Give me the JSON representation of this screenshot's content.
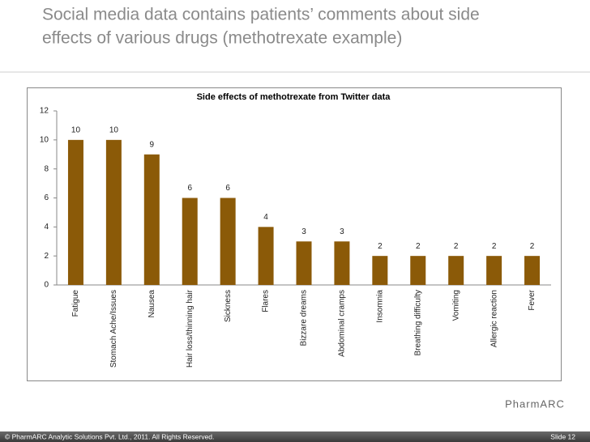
{
  "slide": {
    "title_lines": [
      "Social media data contains patients’ comments about side",
      "effects of various drugs (methotrexate example)"
    ],
    "logo": "PharmARC",
    "footer": "© PharmARC Analytic Solutions Pvt. Ltd., 2011. All Rights Reserved.",
    "slide_number": "Slide 12"
  },
  "chart_data": {
    "type": "bar",
    "title": "Side effects of methotrexate from Twitter data",
    "categories": [
      "Fatigue",
      "Stomach Ache/Issues",
      "Nausea",
      "Hair loss/thinning hair",
      "Sickness",
      "Flares",
      "Bizzare dreams",
      "Abdominal cramps",
      "Insomnia",
      "Breathing difficulty",
      "Vomiting",
      "Allergic reaction",
      "Fever"
    ],
    "values": [
      10,
      10,
      9,
      6,
      6,
      4,
      3,
      3,
      2,
      2,
      2,
      2,
      2
    ],
    "color": "#8b5a08",
    "ylim": [
      0,
      12
    ],
    "yticks": [
      0,
      2,
      4,
      6,
      8,
      10,
      12
    ],
    "grid": false
  }
}
